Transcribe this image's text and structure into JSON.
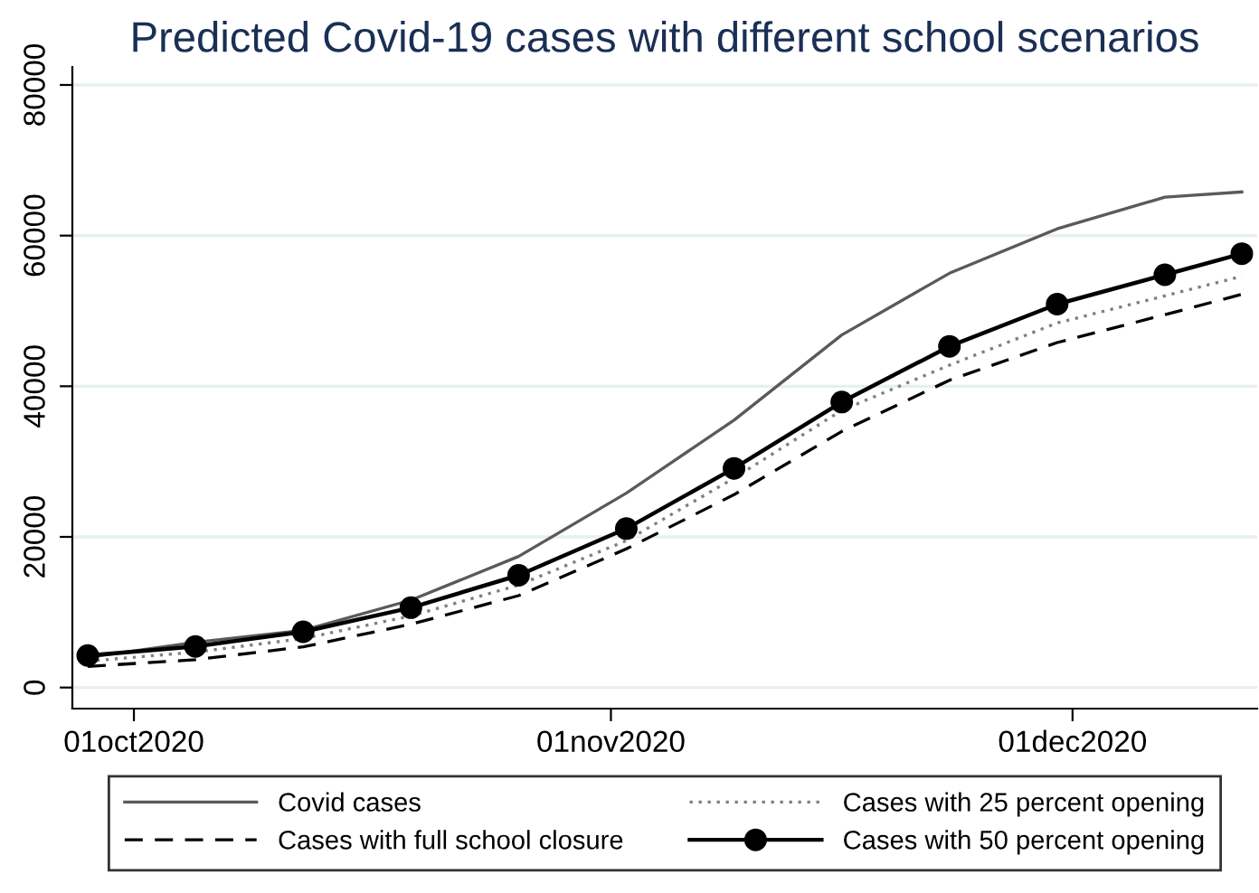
{
  "chart_data": {
    "type": "line",
    "title": "Predicted Covid-19 cases with different school scenarios",
    "x": [
      "2020-09-28",
      "2020-10-05",
      "2020-10-12",
      "2020-10-19",
      "2020-10-26",
      "2020-11-02",
      "2020-11-09",
      "2020-11-16",
      "2020-11-23",
      "2020-11-30",
      "2020-12-07",
      "2020-12-12"
    ],
    "series": [
      {
        "name": "Covid cases",
        "color": "#5a5a5a",
        "line_style": "solid",
        "marker": "none",
        "values": [
          4000,
          6000,
          7600,
          11600,
          17400,
          25800,
          35500,
          46800,
          55000,
          60900,
          65100,
          65800
        ]
      },
      {
        "name": "Cases with full school closure",
        "color": "#000000",
        "line_style": "dashed",
        "marker": "none",
        "values": [
          2800,
          3700,
          5400,
          8400,
          12200,
          18400,
          25600,
          34000,
          40800,
          45800,
          49500,
          52200
        ]
      },
      {
        "name": "Cases with 25 percent opening",
        "color": "#808080",
        "line_style": "dotted",
        "marker": "none",
        "values": [
          3500,
          4700,
          6500,
          9500,
          13600,
          19500,
          27800,
          36800,
          42800,
          48400,
          52000,
          54600
        ]
      },
      {
        "name": "Cases with 50 percent opening",
        "color": "#000000",
        "line_style": "solid",
        "marker": "circle",
        "values": [
          4250,
          5450,
          7400,
          10600,
          14900,
          21100,
          29100,
          37900,
          45300,
          50900,
          54800,
          57600
        ]
      }
    ],
    "xlim": [
      "2020-09-27",
      "2020-12-13"
    ],
    "xticks": [
      {
        "value": "2020-10-01",
        "label": "01oct2020"
      },
      {
        "value": "2020-11-01",
        "label": "01nov2020"
      },
      {
        "value": "2020-12-01",
        "label": "01dec2020"
      }
    ],
    "ylim": [
      -2800,
      82400
    ],
    "yticks": [
      0,
      20000,
      40000,
      60000,
      80000
    ],
    "grid": "y",
    "legend": "bottom"
  }
}
